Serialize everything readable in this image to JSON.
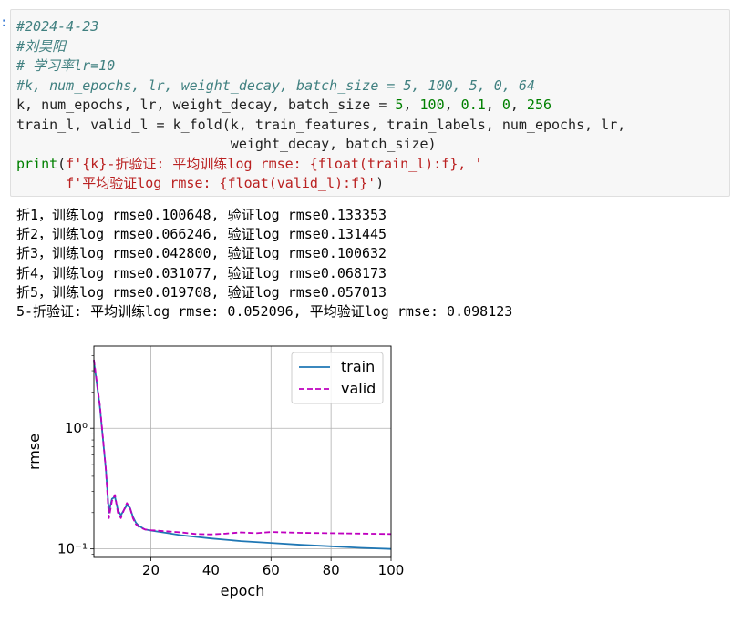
{
  "cell": {
    "comment_date": "#2024-4-23",
    "comment_author": "#刘昊阳",
    "comment_lr": "# 学习率lr=10",
    "comment_params": "#k, num_epochs, lr, weight_decay, batch_size = 5, 100, 5, 0, 64",
    "line5_vars": "k, num_epochs, lr, weight_decay, batch_size = ",
    "line5_values": [
      "5",
      "100",
      "0.1",
      "0",
      "256"
    ],
    "line6": "train_l, valid_l = k_fold(k, train_features, train_labels, num_epochs, lr,",
    "line7": "                          weight_decay, batch_size)",
    "line8_func": "print",
    "line8_str": "f'{k}-折验证: 平均训练log rmse: {float(train_l):f}, '",
    "line9_str": "f'平均验证log rmse: {float(valid_l):f}'"
  },
  "output_lines": [
    "折1，训练log rmse0.100648, 验证log rmse0.133353",
    "折2，训练log rmse0.066246, 验证log rmse0.131445",
    "折3，训练log rmse0.042800, 验证log rmse0.100632",
    "折4，训练log rmse0.031077, 验证log rmse0.068173",
    "折5，训练log rmse0.019708, 验证log rmse0.057013",
    "5-折验证: 平均训练log rmse: 0.052096, 平均验证log rmse: 0.098123"
  ],
  "chart_data": {
    "type": "line",
    "xlabel": "epoch",
    "ylabel": "rmse",
    "xlim": [
      1,
      100
    ],
    "ylim": [
      0.085,
      4.8
    ],
    "yscale": "log",
    "grid": true,
    "legend_position": "top-right",
    "xticks": [
      20,
      40,
      60,
      80,
      100
    ],
    "yticks": [
      {
        "value": 1,
        "label": "10⁰"
      },
      {
        "value": 0.1,
        "label": "10⁻¹"
      }
    ],
    "series": [
      {
        "name": "train",
        "color": "#1f77b4",
        "dash": "solid",
        "x": [
          1,
          3,
          5,
          6,
          7,
          8,
          9,
          10,
          11,
          12,
          13,
          14,
          15,
          16,
          18,
          20,
          25,
          30,
          40,
          50,
          60,
          70,
          80,
          90,
          100
        ],
        "y": [
          3.6,
          1.5,
          0.45,
          0.2,
          0.26,
          0.27,
          0.21,
          0.19,
          0.21,
          0.23,
          0.22,
          0.185,
          0.165,
          0.155,
          0.145,
          0.142,
          0.136,
          0.13,
          0.122,
          0.116,
          0.112,
          0.108,
          0.105,
          0.102,
          0.1
        ]
      },
      {
        "name": "valid",
        "color": "#bf00bf",
        "dash": "dashed",
        "x": [
          1,
          3,
          5,
          6,
          7,
          8,
          9,
          10,
          11,
          12,
          13,
          14,
          15,
          16,
          18,
          20,
          25,
          30,
          35,
          40,
          45,
          50,
          55,
          60,
          70,
          80,
          90,
          100
        ],
        "y": [
          3.7,
          1.55,
          0.45,
          0.18,
          0.25,
          0.28,
          0.2,
          0.18,
          0.21,
          0.24,
          0.22,
          0.18,
          0.16,
          0.152,
          0.145,
          0.143,
          0.14,
          0.137,
          0.133,
          0.132,
          0.134,
          0.137,
          0.135,
          0.138,
          0.136,
          0.135,
          0.134,
          0.133
        ]
      }
    ]
  }
}
